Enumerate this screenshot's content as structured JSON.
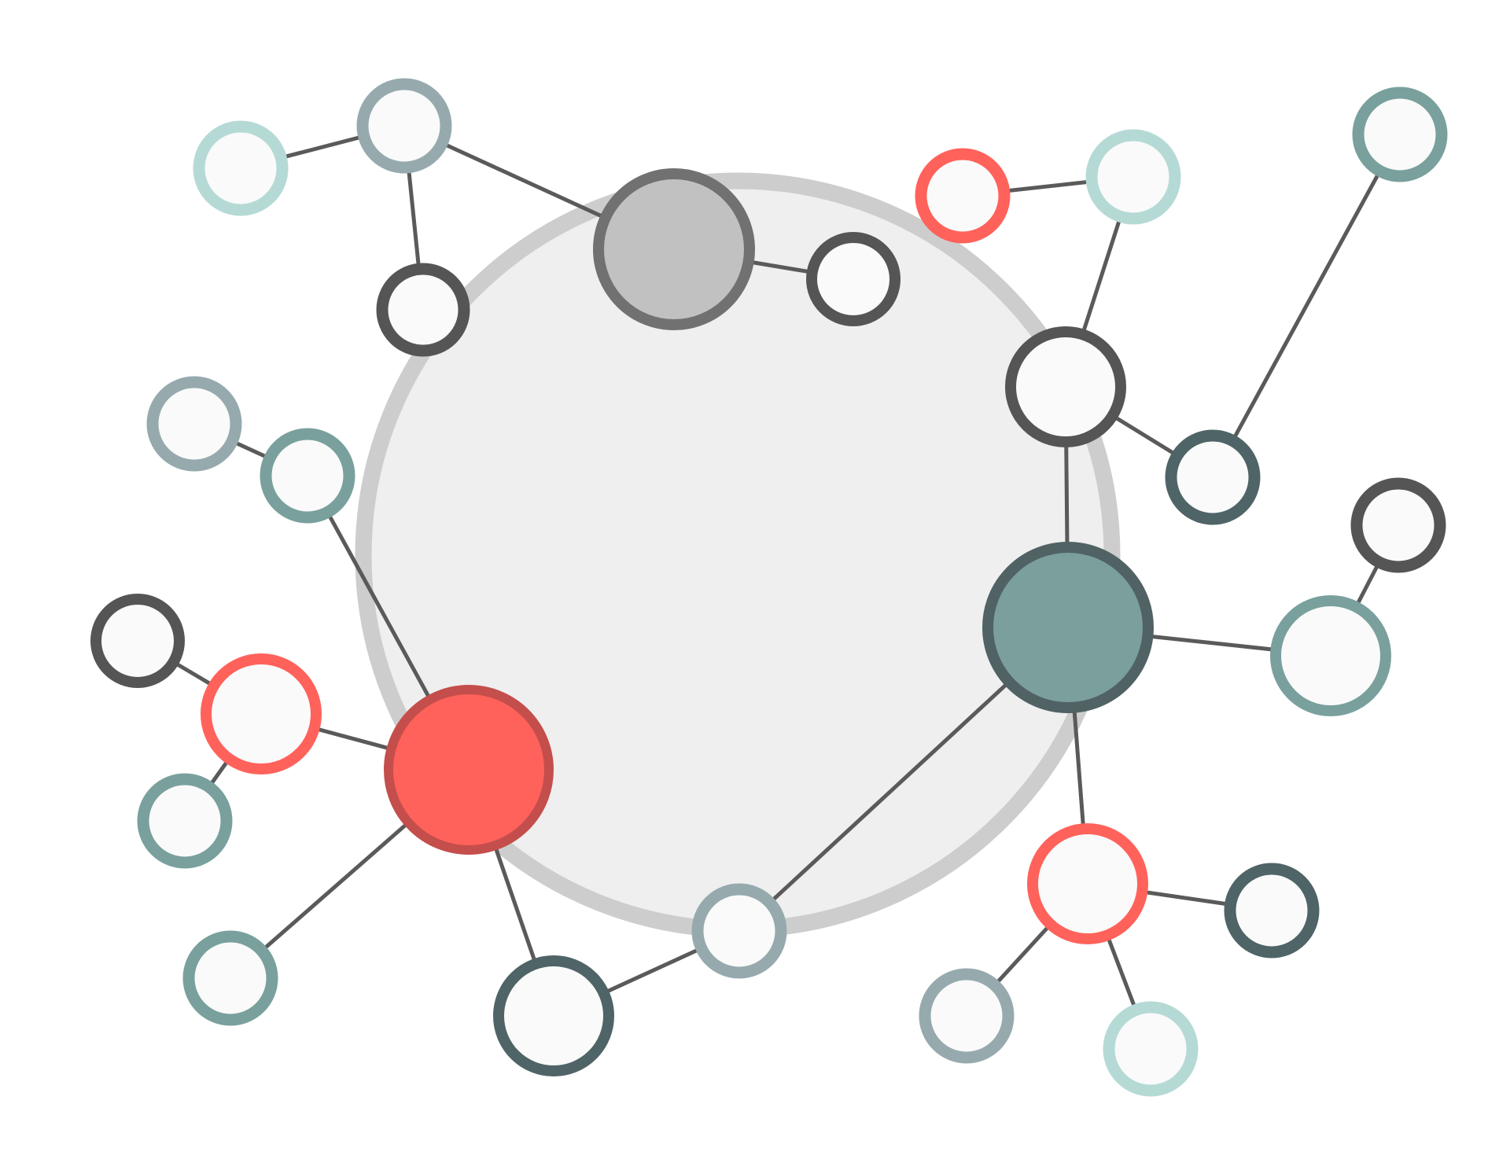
{
  "diagram": {
    "type": "network-graph",
    "colors": {
      "background": "#ffffff",
      "edge": "#5a5a5a",
      "node_fill": "#fafafa",
      "dark_gray": "#555555",
      "slate": "#4f6467",
      "teal": "#79a09c",
      "blue_gray": "#96aaae",
      "light_teal": "#b5dad6",
      "coral": "#ff625b",
      "coral_dark": "#c44e4b",
      "gray_hub_fill": "#c1c1c1",
      "gray_hub_stroke": "#717171",
      "teal_hub_fill": "#7a9f9c",
      "teal_hub_stroke": "#506264",
      "group_fill": "#efefef",
      "group_stroke": "#cdcdcd"
    },
    "group": {
      "name": "central-cluster",
      "contains": [
        "gray-hub",
        "coral-hub",
        "teal-hub",
        "n-upper-left-dark",
        "n-right-upper-dark",
        "n-bottom-bluegray"
      ]
    },
    "nodes": [
      {
        "id": "gray-hub",
        "role": "hub",
        "stroke": "gray_hub_stroke",
        "fill": "gray_hub_fill"
      },
      {
        "id": "coral-hub",
        "role": "hub",
        "stroke": "coral_dark",
        "fill": "coral"
      },
      {
        "id": "teal-hub",
        "role": "hub",
        "stroke": "teal_hub_stroke",
        "fill": "teal_hub_fill"
      },
      {
        "id": "n-top-left-bluegray",
        "role": "node",
        "stroke": "blue_gray"
      },
      {
        "id": "n-far-left-lightteal",
        "role": "node",
        "stroke": "light_teal"
      },
      {
        "id": "n-upper-left-dark",
        "role": "node",
        "stroke": "dark_gray"
      },
      {
        "id": "n-top-center-dark",
        "role": "node",
        "stroke": "dark_gray"
      },
      {
        "id": "n-top-right-coral",
        "role": "node",
        "stroke": "coral"
      },
      {
        "id": "n-top-right-lightteal",
        "role": "node",
        "stroke": "light_teal"
      },
      {
        "id": "n-far-top-right-teal",
        "role": "node",
        "stroke": "teal"
      },
      {
        "id": "n-right-upper-dark",
        "role": "node",
        "stroke": "dark_gray"
      },
      {
        "id": "n-right-slate",
        "role": "node",
        "stroke": "slate"
      },
      {
        "id": "n-mid-left-bluegray",
        "role": "node",
        "stroke": "blue_gray"
      },
      {
        "id": "n-mid-left-teal",
        "role": "node",
        "stroke": "teal"
      },
      {
        "id": "n-far-right-dark",
        "role": "node",
        "stroke": "dark_gray"
      },
      {
        "id": "n-right-teal-large",
        "role": "node",
        "stroke": "teal"
      },
      {
        "id": "n-left-dark",
        "role": "node",
        "stroke": "dark_gray"
      },
      {
        "id": "n-left-coral",
        "role": "node",
        "stroke": "coral"
      },
      {
        "id": "n-left-teal",
        "role": "node",
        "stroke": "teal"
      },
      {
        "id": "n-bottom-left-teal",
        "role": "node",
        "stroke": "teal"
      },
      {
        "id": "n-bottom-dark-large",
        "role": "node",
        "stroke": "slate"
      },
      {
        "id": "n-bottom-bluegray",
        "role": "node",
        "stroke": "blue_gray"
      },
      {
        "id": "n-bottom-right-coral",
        "role": "node",
        "stroke": "coral"
      },
      {
        "id": "n-bottom-right-slate",
        "role": "node",
        "stroke": "slate"
      },
      {
        "id": "n-bottom-right-bluegray",
        "role": "node",
        "stroke": "blue_gray"
      },
      {
        "id": "n-bottom-right-lightteal",
        "role": "node",
        "stroke": "light_teal"
      }
    ],
    "edges": [
      [
        "n-far-left-lightteal",
        "n-top-left-bluegray"
      ],
      [
        "n-top-left-bluegray",
        "gray-hub"
      ],
      [
        "n-top-left-bluegray",
        "n-upper-left-dark"
      ],
      [
        "gray-hub",
        "n-top-center-dark"
      ],
      [
        "n-top-right-coral",
        "n-top-right-lightteal"
      ],
      [
        "n-top-right-lightteal",
        "n-right-upper-dark"
      ],
      [
        "n-right-upper-dark",
        "n-right-slate"
      ],
      [
        "n-right-slate",
        "n-far-top-right-teal"
      ],
      [
        "n-right-upper-dark",
        "teal-hub"
      ],
      [
        "n-mid-left-bluegray",
        "n-mid-left-teal"
      ],
      [
        "n-mid-left-teal",
        "coral-hub"
      ],
      [
        "n-left-dark",
        "n-left-coral"
      ],
      [
        "n-left-coral",
        "n-left-teal"
      ],
      [
        "n-left-coral",
        "coral-hub"
      ],
      [
        "coral-hub",
        "n-bottom-left-teal"
      ],
      [
        "coral-hub",
        "n-bottom-dark-large"
      ],
      [
        "n-bottom-dark-large",
        "n-bottom-bluegray"
      ],
      [
        "n-bottom-bluegray",
        "teal-hub"
      ],
      [
        "teal-hub",
        "n-right-teal-large"
      ],
      [
        "n-right-teal-large",
        "n-far-right-dark"
      ],
      [
        "teal-hub",
        "n-bottom-right-coral"
      ],
      [
        "n-bottom-right-coral",
        "n-bottom-right-slate"
      ],
      [
        "n-bottom-right-coral",
        "n-bottom-right-bluegray"
      ],
      [
        "n-bottom-right-coral",
        "n-bottom-right-lightteal"
      ]
    ]
  }
}
